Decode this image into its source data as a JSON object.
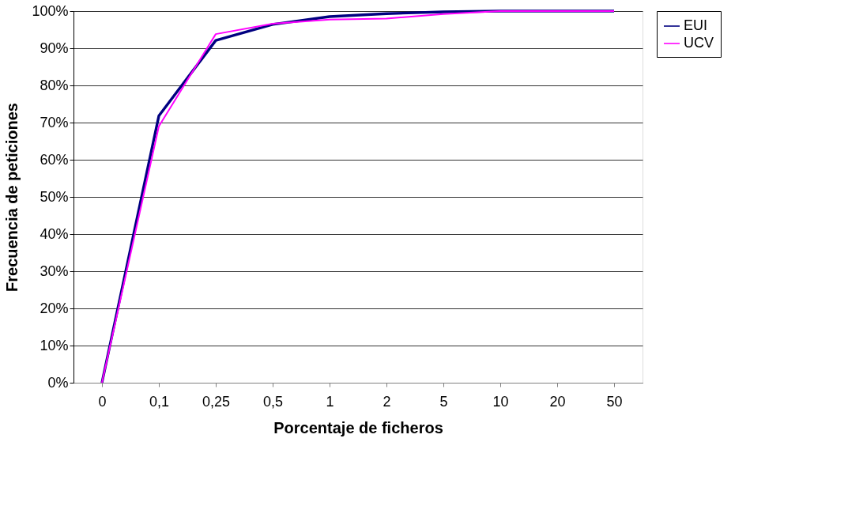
{
  "chart_data": {
    "type": "line",
    "xlabel": "Porcentaje de ficheros",
    "ylabel": "Frecuencia de peticiones",
    "categories": [
      "0",
      "0,1",
      "0,25",
      "0,5",
      "1",
      "2",
      "5",
      "10",
      "20",
      "50"
    ],
    "series": [
      {
        "name": "EUI",
        "color": "#000080",
        "values": [
          0,
          71.8,
          92.1,
          96.4,
          98.5,
          99.3,
          99.8,
          100,
          100,
          100
        ]
      },
      {
        "name": "UCV",
        "color": "#ff00ff",
        "values": [
          0,
          69,
          93.8,
          96.6,
          97.7,
          98,
          99.2,
          100,
          100,
          100
        ]
      }
    ],
    "ylim": [
      0,
      100
    ],
    "yticks": [
      {
        "value": 0,
        "label": "0%"
      },
      {
        "value": 10,
        "label": "10%"
      },
      {
        "value": 20,
        "label": "20%"
      },
      {
        "value": 30,
        "label": "30%"
      },
      {
        "value": 40,
        "label": "40%"
      },
      {
        "value": 50,
        "label": "50%"
      },
      {
        "value": 60,
        "label": "60%"
      },
      {
        "value": 70,
        "label": "70%"
      },
      {
        "value": 80,
        "label": "80%"
      },
      {
        "value": 90,
        "label": "90%"
      },
      {
        "value": 100,
        "label": "100%"
      }
    ],
    "grid": "y",
    "legend": "right",
    "marker": "none",
    "line_style": "solid"
  }
}
